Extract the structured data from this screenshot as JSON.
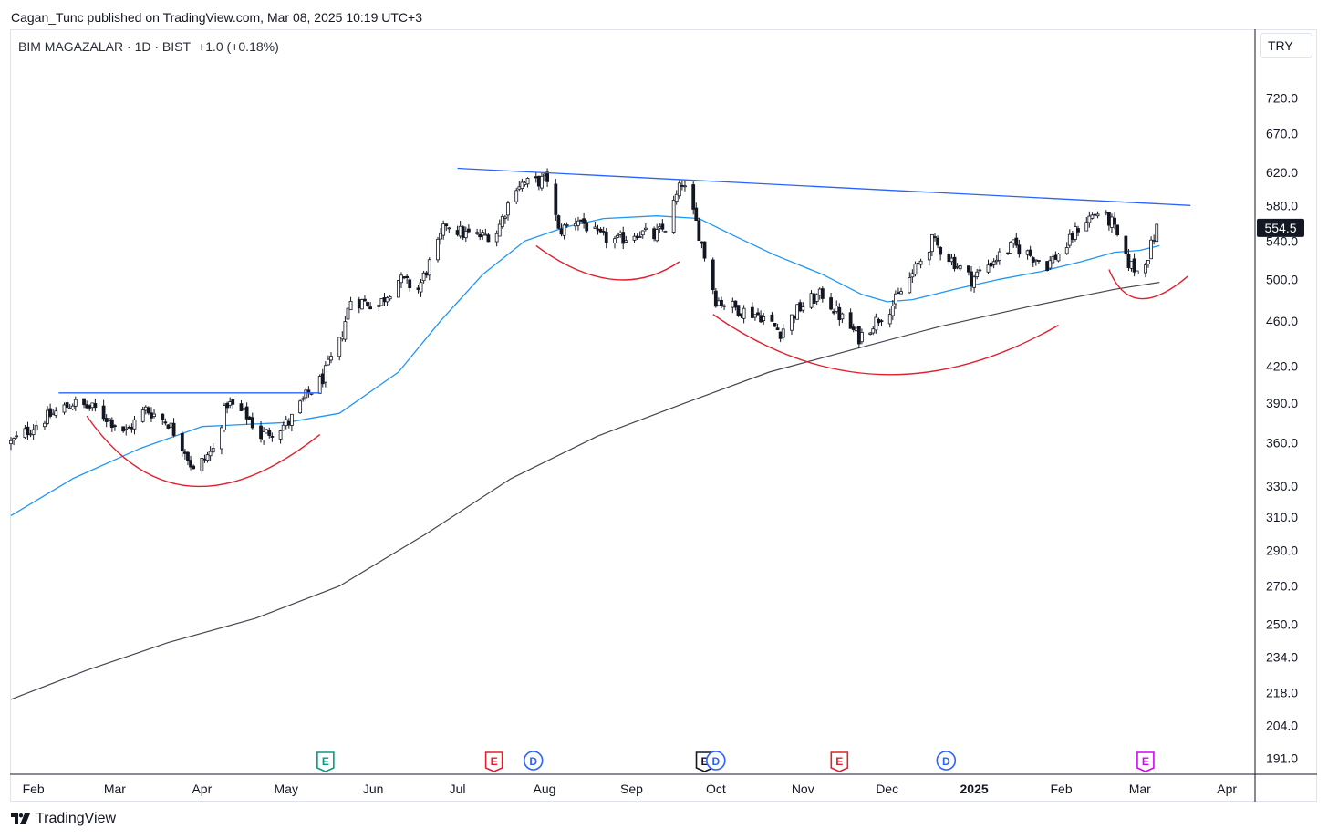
{
  "publisher_line": "Cagan_Tunc published on TradingView.com, Mar 08, 2025 10:19 UTC+3",
  "legend": {
    "symbol": "BIM MAGAZALAR · 1D · BIST",
    "change": "+1.0 (+0.18%)"
  },
  "currency_button": "TRY",
  "brand": "TradingView",
  "colors": {
    "ma_fast": "#2196f3",
    "ma_slow": "#434651",
    "trendline": "#2962ff",
    "arcs": "#e0202e",
    "candle": "#131722",
    "earnings": "#e0202e",
    "earnings_first": "#089981",
    "earnings_last": "#d500f9",
    "dividend": "#2962ff"
  },
  "chart_data": {
    "type": "candlestick",
    "symbol": "BIM MAGAZALAR",
    "interval": "1D",
    "exchange": "BIST",
    "scale": "log",
    "currency": "TRY",
    "last_price": "554.5",
    "y_ticks": [
      "720.0",
      "670.0",
      "620.0",
      "580.0",
      "540.0",
      "500.0",
      "460.0",
      "420.0",
      "390.0",
      "360.0",
      "330.0",
      "310.0",
      "290.0",
      "270.0",
      "250.0",
      "234.0",
      "218.0",
      "204.0",
      "191.0"
    ],
    "ylim": [
      186,
      825
    ],
    "x_ticks": [
      {
        "label": "Feb",
        "date": "2024-02-01",
        "bold": false
      },
      {
        "label": "Mar",
        "date": "2024-03-01",
        "bold": false
      },
      {
        "label": "Apr",
        "date": "2024-04-01",
        "bold": false
      },
      {
        "label": "May",
        "date": "2024-05-01",
        "bold": false
      },
      {
        "label": "Jun",
        "date": "2024-06-01",
        "bold": false
      },
      {
        "label": "Jul",
        "date": "2024-07-01",
        "bold": false
      },
      {
        "label": "Aug",
        "date": "2024-08-01",
        "bold": false
      },
      {
        "label": "Sep",
        "date": "2024-09-01",
        "bold": false
      },
      {
        "label": "Oct",
        "date": "2024-10-01",
        "bold": false
      },
      {
        "label": "Nov",
        "date": "2024-11-01",
        "bold": false
      },
      {
        "label": "Dec",
        "date": "2024-12-01",
        "bold": false
      },
      {
        "label": "2025",
        "date": "2025-01-01",
        "bold": true
      },
      {
        "label": "Feb",
        "date": "2025-02-01",
        "bold": false
      },
      {
        "label": "Mar",
        "date": "2025-03-01",
        "bold": false
      },
      {
        "label": "Apr",
        "date": "2025-04-01",
        "bold": false
      }
    ],
    "price_path": [
      [
        "2024-01-24",
        360
      ],
      [
        "2024-02-05",
        378
      ],
      [
        "2024-02-15",
        390
      ],
      [
        "2024-02-23",
        385
      ],
      [
        "2024-03-05",
        368
      ],
      [
        "2024-03-12",
        385
      ],
      [
        "2024-03-20",
        375
      ],
      [
        "2024-03-26",
        355
      ],
      [
        "2024-03-29",
        340
      ],
      [
        "2024-04-05",
        355
      ],
      [
        "2024-04-10",
        390
      ],
      [
        "2024-04-17",
        380
      ],
      [
        "2024-04-22",
        365
      ],
      [
        "2024-05-02",
        375
      ],
      [
        "2024-05-08",
        395
      ],
      [
        "2024-05-14",
        410
      ],
      [
        "2024-05-20",
        440
      ],
      [
        "2024-05-24",
        480
      ],
      [
        "2024-06-03",
        475
      ],
      [
        "2024-06-10",
        500
      ],
      [
        "2024-06-17",
        490
      ],
      [
        "2024-06-24",
        535
      ],
      [
        "2024-06-27",
        560
      ],
      [
        "2024-07-03",
        548
      ],
      [
        "2024-07-10",
        545
      ],
      [
        "2024-07-15",
        550
      ],
      [
        "2024-07-22",
        605
      ],
      [
        "2024-07-29",
        608
      ],
      [
        "2024-08-02",
        612
      ],
      [
        "2024-08-06",
        550
      ],
      [
        "2024-08-13",
        565
      ],
      [
        "2024-08-20",
        545
      ],
      [
        "2024-08-27",
        540
      ],
      [
        "2024-09-03",
        550
      ],
      [
        "2024-09-09",
        545
      ],
      [
        "2024-09-13",
        555
      ],
      [
        "2024-09-19",
        608
      ],
      [
        "2024-09-24",
        560
      ],
      [
        "2024-09-27",
        525
      ],
      [
        "2024-10-01",
        480
      ],
      [
        "2024-10-10",
        470
      ],
      [
        "2024-10-17",
        465
      ],
      [
        "2024-10-24",
        450
      ],
      [
        "2024-10-30",
        470
      ],
      [
        "2024-11-04",
        480
      ],
      [
        "2024-11-08",
        485
      ],
      [
        "2024-11-14",
        465
      ],
      [
        "2024-11-21",
        445
      ],
      [
        "2024-11-27",
        460
      ],
      [
        "2024-12-03",
        475
      ],
      [
        "2024-12-10",
        505
      ],
      [
        "2024-12-17",
        540
      ],
      [
        "2024-12-24",
        520
      ],
      [
        "2024-12-31",
        500
      ],
      [
        "2025-01-08",
        520
      ],
      [
        "2025-01-15",
        535
      ],
      [
        "2025-01-21",
        525
      ],
      [
        "2025-01-27",
        515
      ],
      [
        "2025-02-03",
        535
      ],
      [
        "2025-02-08",
        560
      ],
      [
        "2025-02-14",
        572
      ],
      [
        "2025-02-19",
        560
      ],
      [
        "2025-02-24",
        520
      ],
      [
        "2025-02-28",
        508
      ],
      [
        "2025-03-04",
        525
      ],
      [
        "2025-03-07",
        554.5
      ]
    ],
    "ma_fast": [
      [
        "2024-01-24",
        311
      ],
      [
        "2024-02-15",
        335
      ],
      [
        "2024-03-10",
        356
      ],
      [
        "2024-04-01",
        372
      ],
      [
        "2024-05-01",
        375
      ],
      [
        "2024-05-20",
        382
      ],
      [
        "2024-06-10",
        415
      ],
      [
        "2024-06-25",
        460
      ],
      [
        "2024-07-10",
        505
      ],
      [
        "2024-07-25",
        540
      ],
      [
        "2024-08-08",
        555
      ],
      [
        "2024-08-22",
        565
      ],
      [
        "2024-09-10",
        568
      ],
      [
        "2024-09-25",
        565
      ],
      [
        "2024-10-08",
        545
      ],
      [
        "2024-10-22",
        525
      ],
      [
        "2024-11-08",
        505
      ],
      [
        "2024-11-22",
        485
      ],
      [
        "2024-12-01",
        478
      ],
      [
        "2024-12-10",
        480
      ],
      [
        "2024-12-25",
        490
      ],
      [
        "2025-01-10",
        500
      ],
      [
        "2025-01-25",
        508
      ],
      [
        "2025-02-08",
        518
      ],
      [
        "2025-02-20",
        528
      ],
      [
        "2025-03-01",
        530
      ],
      [
        "2025-03-08",
        535
      ]
    ],
    "ma_slow": [
      [
        "2024-01-24",
        215
      ],
      [
        "2024-02-20",
        228
      ],
      [
        "2024-03-20",
        241
      ],
      [
        "2024-04-20",
        253
      ],
      [
        "2024-05-20",
        270
      ],
      [
        "2024-06-20",
        300
      ],
      [
        "2024-07-20",
        335
      ],
      [
        "2024-08-20",
        365
      ],
      [
        "2024-09-20",
        390
      ],
      [
        "2024-10-20",
        415
      ],
      [
        "2024-11-20",
        435
      ],
      [
        "2024-12-20",
        455
      ],
      [
        "2025-01-20",
        473
      ],
      [
        "2025-02-20",
        490
      ],
      [
        "2025-03-08",
        497
      ]
    ],
    "trendlines": [
      {
        "from": [
          "2024-07-01",
          625
        ],
        "to": [
          "2025-03-19",
          580
        ],
        "color": "trendline"
      },
      {
        "from": [
          "2024-02-10",
          398
        ],
        "to": [
          "2024-05-13",
          398
        ],
        "color": "trendline"
      }
    ],
    "arcs": [
      {
        "start": [
          "2024-02-20",
          380
        ],
        "bottom": [
          "2024-03-28",
          330
        ],
        "end": [
          "2024-05-13",
          366
        ]
      },
      {
        "start": [
          "2024-07-29",
          535
        ],
        "bottom": [
          "2024-08-25",
          500
        ],
        "end": [
          "2024-09-18",
          518
        ]
      },
      {
        "start": [
          "2024-09-30",
          466
        ],
        "bottom": [
          "2024-11-29",
          413
        ],
        "end": [
          "2025-01-31",
          456
        ]
      },
      {
        "start": [
          "2025-02-18",
          510
        ],
        "bottom": [
          "2025-03-01",
          481
        ],
        "end": [
          "2025-03-18",
          503
        ]
      }
    ],
    "events": [
      {
        "label": "E",
        "date": "2024-05-15",
        "kind": "earnings",
        "style": "earnings_first"
      },
      {
        "label": "E",
        "date": "2024-07-14",
        "kind": "earnings",
        "style": "earnings"
      },
      {
        "label": "D",
        "date": "2024-07-28",
        "kind": "dividend",
        "style": "dividend"
      },
      {
        "label": "E",
        "date": "2024-09-27",
        "kind": "earnings",
        "style": "candle"
      },
      {
        "label": "D",
        "date": "2024-10-01",
        "kind": "dividend",
        "style": "dividend"
      },
      {
        "label": "E",
        "date": "2024-11-14",
        "kind": "earnings",
        "style": "earnings"
      },
      {
        "label": "D",
        "date": "2024-12-22",
        "kind": "dividend",
        "style": "dividend"
      },
      {
        "label": "E",
        "date": "2025-03-03",
        "kind": "earnings",
        "style": "earnings_last"
      }
    ]
  }
}
